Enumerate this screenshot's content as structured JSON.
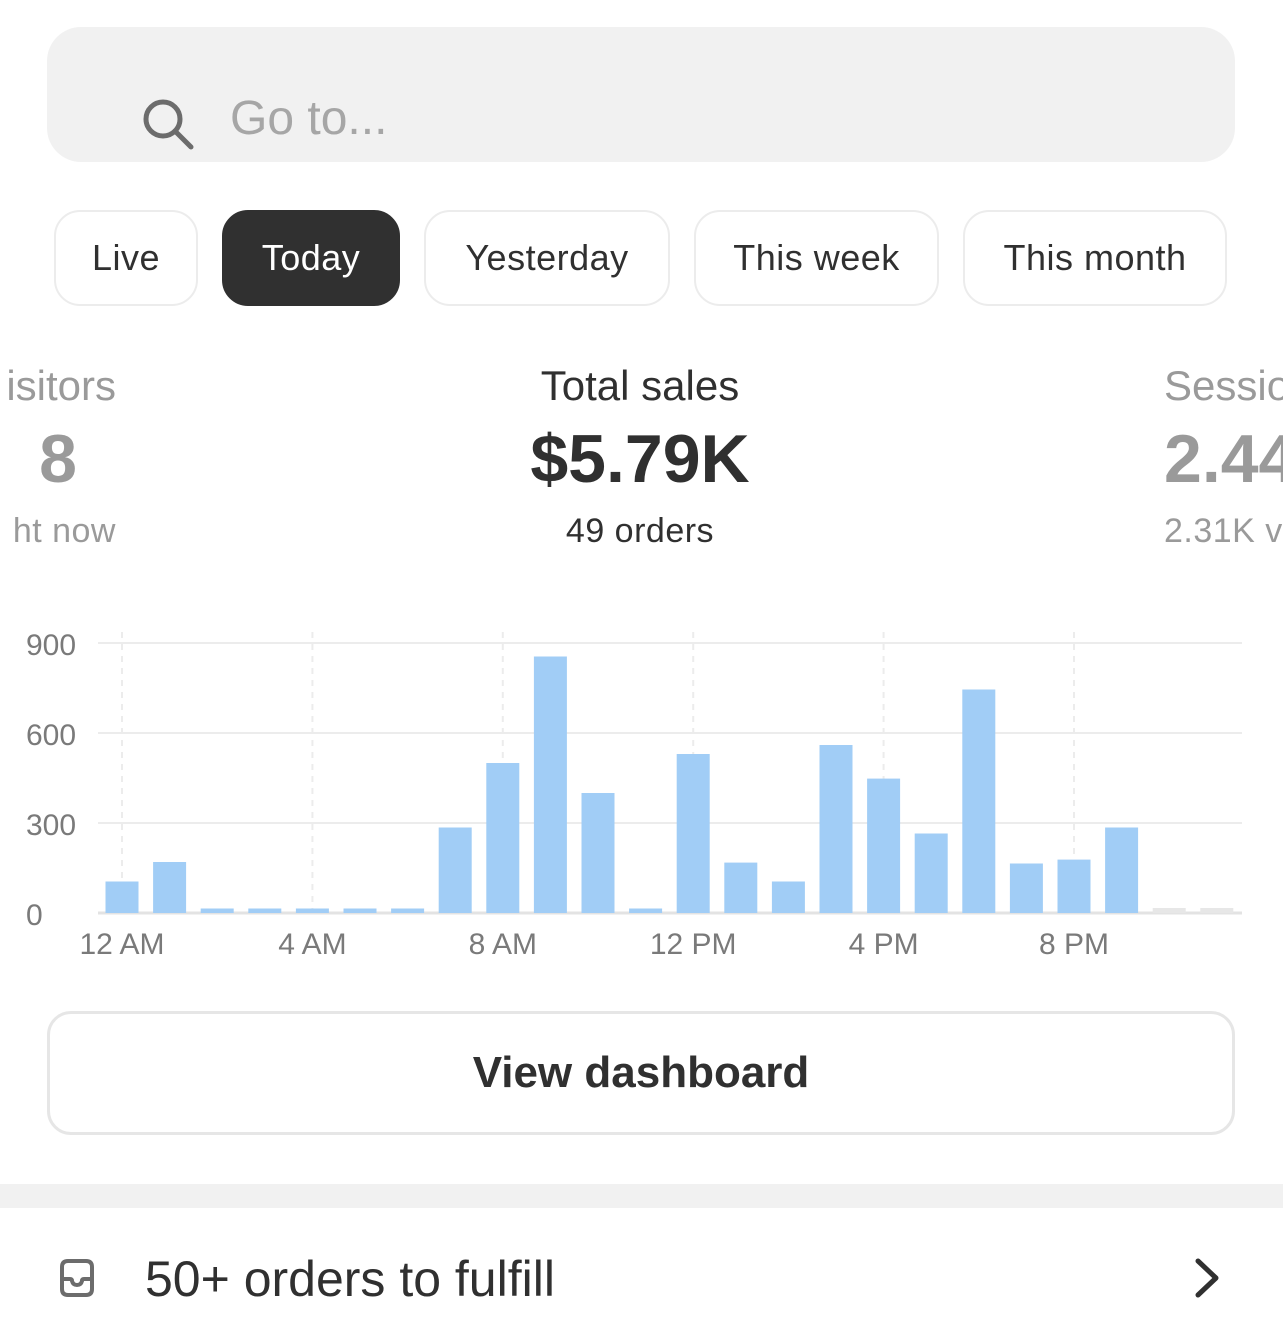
{
  "search": {
    "placeholder": "Go to..."
  },
  "tabs": [
    {
      "label": "Live",
      "active": false
    },
    {
      "label": "Today",
      "active": true
    },
    {
      "label": "Yesterday",
      "active": false
    },
    {
      "label": "This week",
      "active": false
    },
    {
      "label": "This month",
      "active": false
    }
  ],
  "metrics": {
    "visitors": {
      "label": "isitors",
      "value": "8",
      "sub": "ht now"
    },
    "sales": {
      "label": "Total sales",
      "value": "$5.79K",
      "sub": "49 orders"
    },
    "sessions": {
      "label": "Sessio",
      "value": "2.44",
      "sub": "2.31K v"
    }
  },
  "chart_data": {
    "type": "bar",
    "categories": [
      "12 AM",
      "1 AM",
      "2 AM",
      "3 AM",
      "4 AM",
      "5 AM",
      "6 AM",
      "7 AM",
      "8 AM",
      "9 AM",
      "10 AM",
      "11 AM",
      "12 PM",
      "1 PM",
      "2 PM",
      "3 PM",
      "4 PM",
      "5 PM",
      "6 PM",
      "7 PM",
      "8 PM",
      "9 PM",
      "10 PM",
      "11 PM"
    ],
    "values": [
      105,
      170,
      15,
      15,
      15,
      15,
      15,
      285,
      500,
      855,
      400,
      15,
      530,
      168,
      105,
      560,
      448,
      265,
      745,
      165,
      178,
      285,
      null,
      null
    ],
    "ylim": [
      0,
      900
    ],
    "yticks": [
      "0",
      "300",
      "600",
      "900"
    ],
    "yticks_values": [
      0,
      300,
      600,
      900
    ],
    "xtick_labels": [
      "12 AM",
      "4 AM",
      "8 AM",
      "12 PM",
      "4 PM",
      "8 PM"
    ],
    "xtick_hours": [
      0,
      4,
      8,
      12,
      16,
      20
    ],
    "grid": true,
    "colors": {
      "bar": "#a1cdf6",
      "future": "#e7e7e7",
      "grid": "#ececec",
      "axis": "#e3e3e3",
      "tick_text": "#7a7a7a"
    }
  },
  "dashboard_button": {
    "label": "View dashboard"
  },
  "fulfill": {
    "text": "50+ orders to fulfill"
  }
}
